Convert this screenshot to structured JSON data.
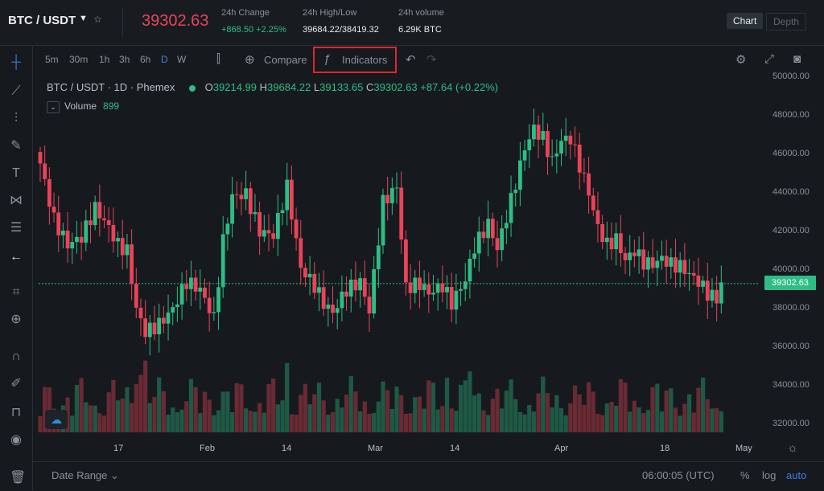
{
  "header": {
    "pair": "BTC / USDT",
    "price": "39302.63",
    "stats": [
      {
        "label": "24h Change",
        "value": "+868.50 +2.25%",
        "up": true
      },
      {
        "label": "24h High/Low",
        "value": "39684.22/38419.32",
        "up": false
      },
      {
        "label": "24h volume",
        "value": "6.29K BTC",
        "up": false
      }
    ],
    "views": [
      "Chart",
      "Depth"
    ]
  },
  "toolbar": {
    "timeframes": [
      "5m",
      "30m",
      "1h",
      "3h",
      "6h",
      "D",
      "W"
    ],
    "active_timeframe": "D",
    "compare_label": "Compare",
    "indicators_label": "Indicators"
  },
  "legend": {
    "title": "BTC / USDT · 1D · Phemex",
    "o_label": "O",
    "o": "39214.99",
    "h_label": "H",
    "h": "39684.22",
    "l_label": "L",
    "l": "39133.65",
    "c_label": "C",
    "c": "39302.63",
    "change": "+87.64 (+0.22%)",
    "volume_label": "Volume",
    "volume_value": "899"
  },
  "price_axis": {
    "labels": [
      "50000.00",
      "48000.00",
      "46000.00",
      "44000.00",
      "42000.00",
      "40000.00",
      "38000.00",
      "36000.00",
      "34000.00",
      "32000.00"
    ],
    "current": "39302.63"
  },
  "time_axis": {
    "labels": [
      "17",
      "Feb",
      "14",
      "Mar",
      "14",
      "Apr",
      "18",
      "May"
    ]
  },
  "bottom": {
    "date_range": "Date Range",
    "clock": "06:00:05 (UTC)",
    "percent": "%",
    "log": "log",
    "auto": "auto"
  },
  "colors": {
    "up": "#2ebd85",
    "down": "#e94359",
    "accent": "#3f7ae0",
    "highlight": "#d9292f"
  },
  "icons": {
    "left_tools": [
      "crosshair-icon",
      "trend-line-icon",
      "pitchfork-icon",
      "brush-icon",
      "text-icon",
      "pattern-icon",
      "fib-icon",
      "arrow-left-icon",
      "ruler-icon",
      "zoom-icon",
      "magnet-icon",
      "lock-pencil-icon",
      "lock-icon",
      "eye-icon",
      "trash-icon"
    ]
  }
}
